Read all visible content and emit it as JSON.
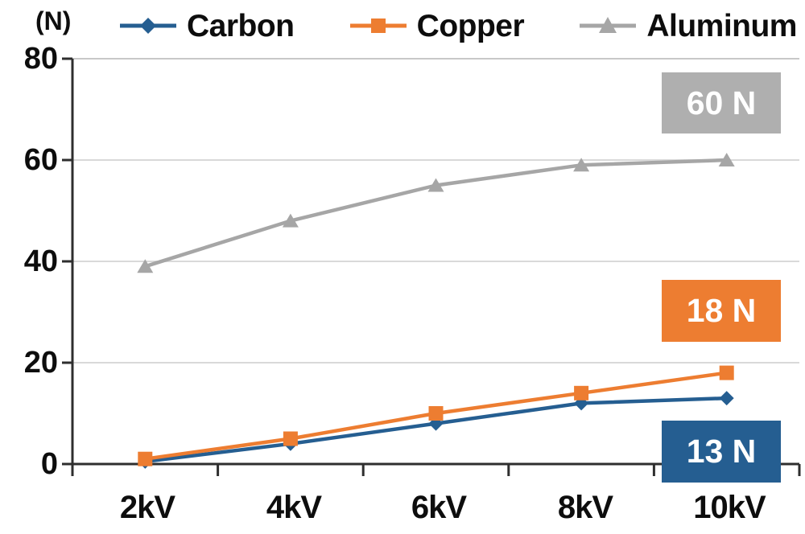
{
  "chart_data": {
    "type": "line",
    "title": "",
    "unit_label": "(N)",
    "xlabel": "",
    "ylabel": "(N)",
    "categories": [
      "2kV",
      "4kV",
      "6kV",
      "8kV",
      "10kV"
    ],
    "series": [
      {
        "name": "Carbon",
        "marker": "diamond",
        "color": "#255E91",
        "values": [
          0.5,
          4,
          8,
          12,
          13
        ]
      },
      {
        "name": "Copper",
        "marker": "square",
        "color": "#ED7D31",
        "values": [
          1,
          5,
          10,
          14,
          18
        ]
      },
      {
        "name": "Aluminum",
        "marker": "triangle",
        "color": "#A6A6A6",
        "values": [
          39,
          48,
          55,
          59,
          60
        ]
      }
    ],
    "ylim": [
      0,
      80
    ],
    "yticks": [
      0,
      20,
      40,
      60,
      80
    ],
    "grid": true,
    "legend_position": "top",
    "annotations": [
      {
        "text": "60 N",
        "color": "#AFAFAF",
        "series": "Aluminum"
      },
      {
        "text": "18 N",
        "color": "#ED7D31",
        "series": "Copper"
      },
      {
        "text": "13 N",
        "color": "#255E91",
        "series": "Carbon"
      }
    ],
    "colors": {
      "axis": "#2e2e2e",
      "gridline": "#d9d9d9",
      "top_gridline": "#c8c8c8"
    }
  }
}
